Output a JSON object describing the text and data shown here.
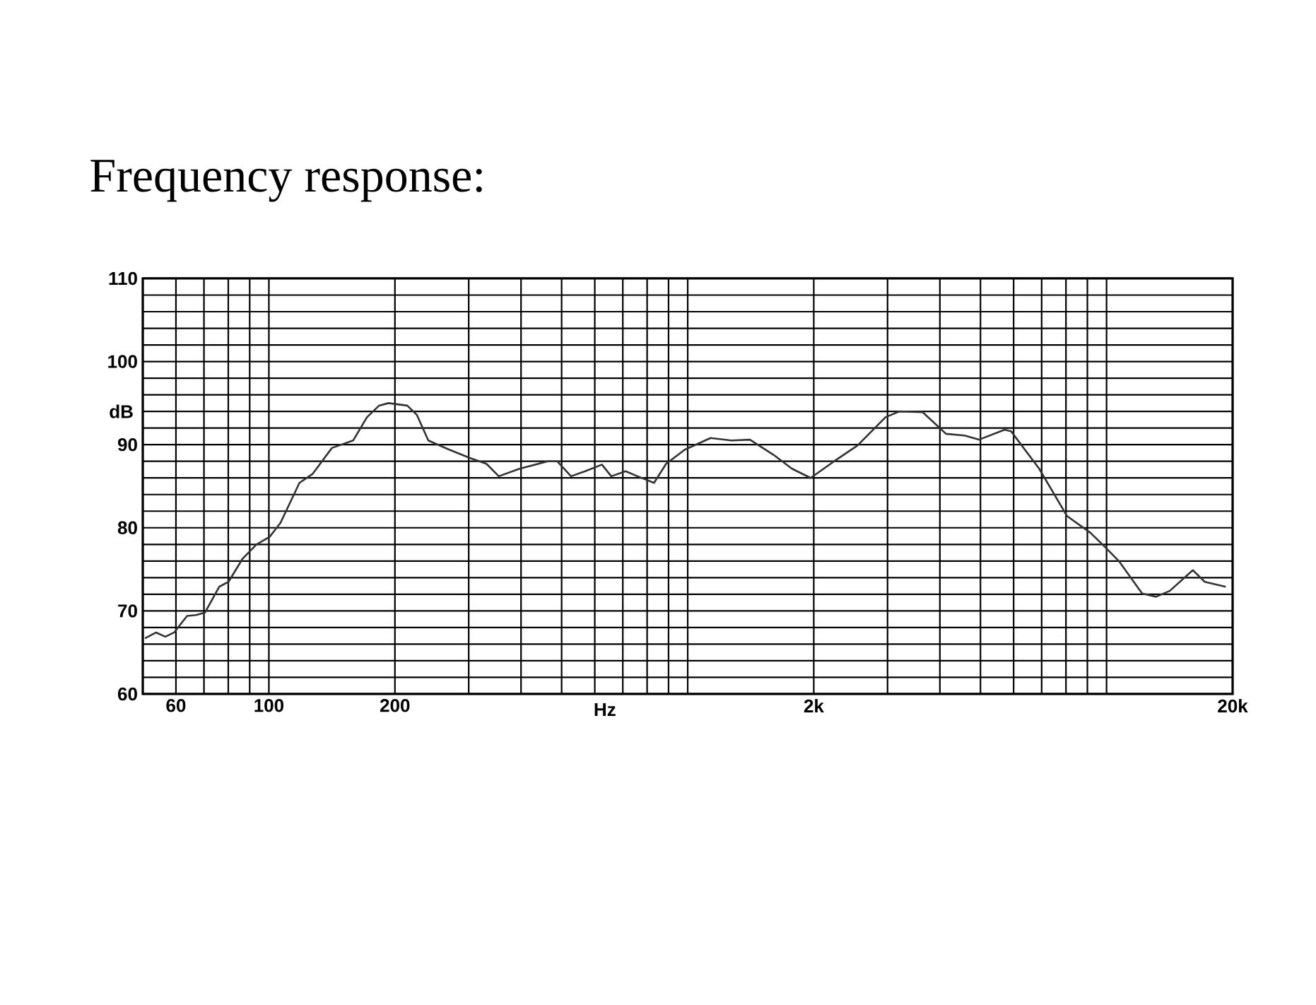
{
  "chart_data": {
    "type": "line",
    "title": "Frequency response:",
    "xlabel": "Hz",
    "ylabel": "dB",
    "log": "x",
    "grid": true,
    "marker": "none",
    "line_style": "solid",
    "xlim": [
      50,
      20000
    ],
    "ylim": [
      60,
      110
    ],
    "xticks": [
      {
        "value": 50,
        "label": null
      },
      60,
      {
        "value": 70,
        "label": null
      },
      {
        "value": 80,
        "label": null
      },
      {
        "value": 90,
        "label": null
      },
      100,
      200,
      {
        "value": 300,
        "label": null
      },
      {
        "value": 400,
        "label": null
      },
      {
        "value": 500,
        "label": null
      },
      {
        "value": 600,
        "label": null
      },
      {
        "value": 700,
        "label": null
      },
      {
        "value": 800,
        "label": null
      },
      {
        "value": 900,
        "label": null
      },
      {
        "value": 1000,
        "label": null
      },
      {
        "value": 2000,
        "label": "2k"
      },
      {
        "value": 3000,
        "label": null
      },
      {
        "value": 4000,
        "label": null
      },
      {
        "value": 5000,
        "label": null
      },
      {
        "value": 6000,
        "label": null
      },
      {
        "value": 7000,
        "label": null
      },
      {
        "value": 8000,
        "label": null
      },
      {
        "value": 9000,
        "label": null
      },
      {
        "value": 10000,
        "label": null
      },
      {
        "value": 20000,
        "label": "20k"
      }
    ],
    "yticks": [
      60,
      {
        "value": 62,
        "label": null
      },
      {
        "value": 64,
        "label": null
      },
      {
        "value": 66,
        "label": null
      },
      {
        "value": 68,
        "label": null
      },
      70,
      {
        "value": 72,
        "label": null
      },
      {
        "value": 74,
        "label": null
      },
      {
        "value": 76,
        "label": null
      },
      {
        "value": 78,
        "label": null
      },
      80,
      {
        "value": 82,
        "label": null
      },
      {
        "value": 84,
        "label": null
      },
      {
        "value": 86,
        "label": null
      },
      {
        "value": 88,
        "label": null
      },
      90,
      {
        "value": 92,
        "label": null
      },
      {
        "value": 94,
        "label": null
      },
      {
        "value": 96,
        "label": null
      },
      {
        "value": 98,
        "label": null
      },
      100,
      {
        "value": 102,
        "label": null
      },
      {
        "value": 104,
        "label": null
      },
      {
        "value": 106,
        "label": null
      },
      {
        "value": 108,
        "label": null
      },
      110
    ],
    "series": [
      {
        "color": "#333333",
        "x": [
          50.6,
          53.8,
          56.6,
          59.4,
          63.8,
          67,
          70.4,
          76.1,
          80.1,
          86.6,
          93.4,
          100.4,
          106.6,
          118.3,
          127.3,
          141.4,
          158.9,
          171.5,
          183.3,
          193,
          214,
          225.5,
          240.3,
          269.6,
          302,
          330.8,
          354,
          396.7,
          463,
          488,
          526.5,
          569,
          624,
          657,
          711,
          759,
          831,
          888,
          984,
          1134,
          1271,
          1408,
          1601,
          1775,
          1966,
          2236,
          2543,
          2966,
          3204,
          3640,
          4138,
          4585,
          4958,
          5710,
          5920,
          6907,
          8051,
          9153,
          9912,
          10700,
          12160,
          13130,
          14150,
          16070,
          17160,
          19260
        ],
        "values": [
          66.7,
          67.4,
          66.9,
          67.4,
          69.4,
          69.5,
          69.8,
          72.9,
          73.5,
          76.3,
          78,
          78.9,
          80.6,
          85.4,
          86.5,
          89.6,
          90.5,
          93.3,
          94.7,
          95,
          94.7,
          93.6,
          90.5,
          89.4,
          88.4,
          87.7,
          86.2,
          87.1,
          88,
          88,
          86.2,
          86.8,
          87.6,
          86.2,
          86.8,
          86.2,
          85.4,
          87.7,
          89.4,
          90.8,
          90.5,
          90.6,
          88.8,
          87.1,
          86,
          88,
          89.9,
          93.3,
          94,
          93.9,
          91.3,
          91.1,
          90.6,
          91.8,
          91.6,
          87.1,
          81.4,
          79.4,
          77.7,
          76,
          72.1,
          71.7,
          72.4,
          74.9,
          73.5,
          72.9
        ]
      }
    ]
  }
}
